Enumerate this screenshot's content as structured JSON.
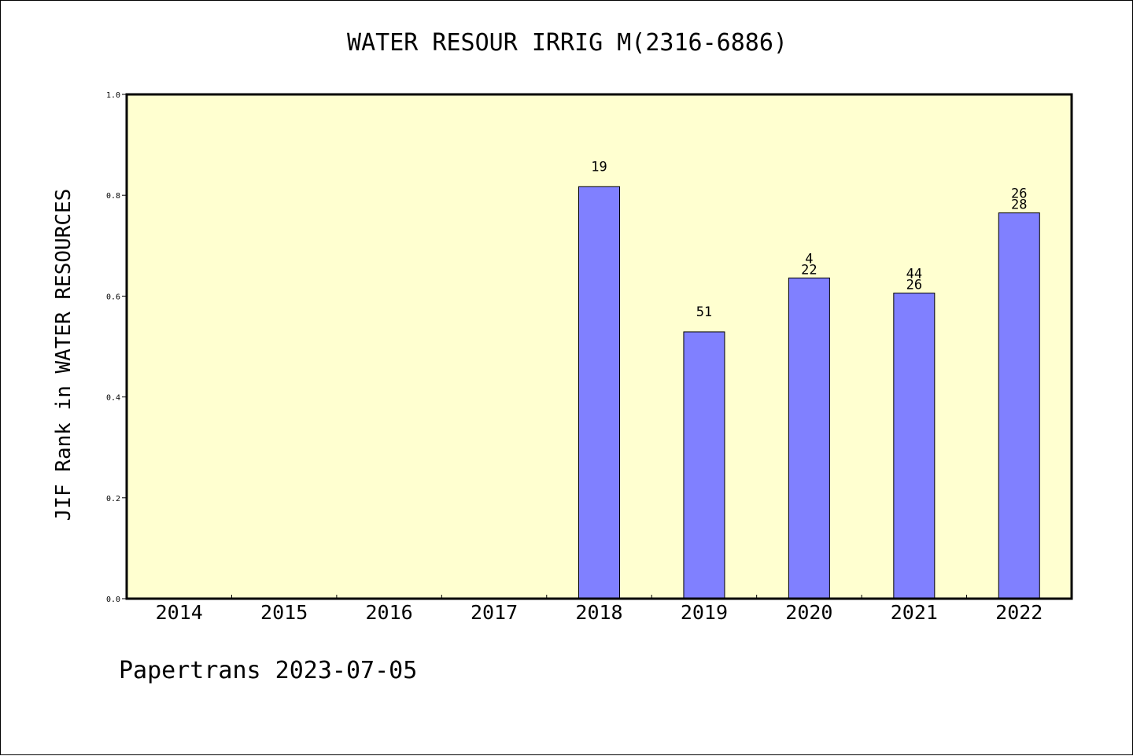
{
  "chart_data": {
    "type": "bar",
    "title": "WATER RESOUR IRRIG M(2316-6886)",
    "xlabel": "",
    "ylabel": "JIF Rank in WATER RESOURCES",
    "ylim": [
      0,
      1
    ],
    "yticks": [
      "0.0",
      "0.2",
      "0.4",
      "0.6",
      "0.8",
      "1.0"
    ],
    "categories": [
      "2014",
      "2015",
      "2016",
      "2017",
      "2018",
      "2019",
      "2020",
      "2021",
      "2022"
    ],
    "values": [
      null,
      null,
      null,
      null,
      0.817,
      0.529,
      0.636,
      0.606,
      0.765
    ],
    "bar_labels": [
      [],
      [],
      [],
      [],
      [
        "19"
      ],
      [
        "51"
      ],
      [
        "4",
        "22"
      ],
      [
        "44",
        "26"
      ],
      [
        "26",
        "28"
      ]
    ],
    "colors": {
      "plot_background": "#ffffd0",
      "bar": "#8080ff",
      "axis": "#000000"
    },
    "grid": false
  },
  "footer": "Papertrans 2023-07-05"
}
